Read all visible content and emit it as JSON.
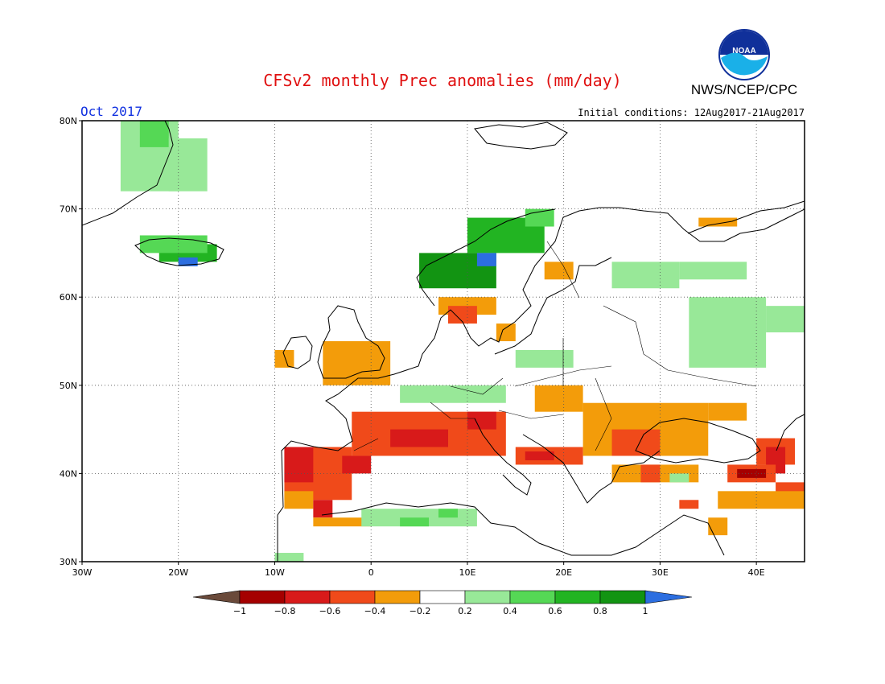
{
  "title": "CFSv2 monthly Prec anomalies (mm/day)",
  "agency": "NWS/NCEP/CPC",
  "logo_text": "NOAA",
  "month": "Oct 2017",
  "initial_conditions": "Initial conditions: 12Aug2017-21Aug2017",
  "axes": {
    "lon_min": -30,
    "lon_max": 45,
    "lat_min": 30,
    "lat_max": 80,
    "lon_ticks": [
      "30W",
      "20W",
      "10W",
      "0",
      "10E",
      "20E",
      "30E",
      "40E"
    ],
    "lat_ticks": [
      "30N",
      "40N",
      "50N",
      "60N",
      "70N",
      "80N"
    ],
    "grid": "dotted"
  },
  "colorbar": {
    "labels": [
      "−1",
      "−0.8",
      "−0.6",
      "−0.4",
      "−0.2",
      "0.2",
      "0.4",
      "0.6",
      "0.8",
      "1"
    ],
    "colors": [
      "#6a4a3a",
      "#a50000",
      "#d81a1a",
      "#f04a1a",
      "#f39c0a",
      "#ffffff",
      "#98e898",
      "#55d855",
      "#22b422",
      "#129412",
      "#2c6ee0"
    ]
  },
  "anomaly_regions": [
    {
      "lon": [
        -26,
        -20
      ],
      "lat": [
        72,
        80
      ],
      "cat": "0.2"
    },
    {
      "lon": [
        -24,
        -21
      ],
      "lat": [
        77,
        80
      ],
      "cat": "0.4"
    },
    {
      "lon": [
        -21,
        -17
      ],
      "lat": [
        72,
        78
      ],
      "cat": "0.2"
    },
    {
      "lon": [
        -22,
        -16
      ],
      "lat": [
        64,
        66
      ],
      "cat": "0.6"
    },
    {
      "lon": [
        -24,
        -17
      ],
      "lat": [
        65,
        67
      ],
      "cat": "0.4"
    },
    {
      "lon": [
        -20,
        -18
      ],
      "lat": [
        63.5,
        64.5
      ],
      "cat": "1"
    },
    {
      "lon": [
        5,
        13
      ],
      "lat": [
        61,
        65
      ],
      "cat": "0.8"
    },
    {
      "lon": [
        10,
        18
      ],
      "lat": [
        65,
        69
      ],
      "cat": "0.6"
    },
    {
      "lon": [
        16,
        19
      ],
      "lat": [
        68,
        70
      ],
      "cat": "0.4"
    },
    {
      "lon": [
        11,
        13
      ],
      "lat": [
        63.5,
        65
      ],
      "cat": "1"
    },
    {
      "lon": [
        18,
        21
      ],
      "lat": [
        62,
        64
      ],
      "cat": "-0.4"
    },
    {
      "lon": [
        7,
        13
      ],
      "lat": [
        58,
        60
      ],
      "cat": "-0.4"
    },
    {
      "lon": [
        8,
        11
      ],
      "lat": [
        57,
        59
      ],
      "cat": "-0.6"
    },
    {
      "lon": [
        13,
        15
      ],
      "lat": [
        55,
        57
      ],
      "cat": "-0.4"
    },
    {
      "lon": [
        -10,
        -8
      ],
      "lat": [
        52,
        54
      ],
      "cat": "-0.4"
    },
    {
      "lon": [
        -5,
        2
      ],
      "lat": [
        50,
        55
      ],
      "cat": "-0.4"
    },
    {
      "lon": [
        3,
        14
      ],
      "lat": [
        48,
        50
      ],
      "cat": "0.2"
    },
    {
      "lon": [
        15,
        21
      ],
      "lat": [
        52,
        54
      ],
      "cat": "0.2"
    },
    {
      "lon": [
        25,
        32
      ],
      "lat": [
        61,
        64
      ],
      "cat": "0.2"
    },
    {
      "lon": [
        32,
        39
      ],
      "lat": [
        62,
        64
      ],
      "cat": "0.2"
    },
    {
      "lon": [
        33,
        41
      ],
      "lat": [
        52,
        60
      ],
      "cat": "0.2"
    },
    {
      "lon": [
        41,
        45
      ],
      "lat": [
        56,
        59
      ],
      "cat": "0.2"
    },
    {
      "lon": [
        34,
        38
      ],
      "lat": [
        68,
        69
      ],
      "cat": "-0.4"
    },
    {
      "lon": [
        -2,
        14
      ],
      "lat": [
        42,
        47
      ],
      "cat": "-0.6"
    },
    {
      "lon": [
        2,
        8
      ],
      "lat": [
        43,
        45
      ],
      "cat": "-0.8"
    },
    {
      "lon": [
        10,
        13
      ],
      "lat": [
        45,
        47
      ],
      "cat": "-0.8"
    },
    {
      "lon": [
        -9,
        -2
      ],
      "lat": [
        37,
        43
      ],
      "cat": "-0.6"
    },
    {
      "lon": [
        -9,
        -6
      ],
      "lat": [
        39,
        43
      ],
      "cat": "-0.8"
    },
    {
      "lon": [
        -3,
        0
      ],
      "lat": [
        40,
        42
      ],
      "cat": "-0.8"
    },
    {
      "lon": [
        -9,
        -6
      ],
      "lat": [
        36,
        38
      ],
      "cat": "-0.4"
    },
    {
      "lon": [
        -6,
        -4
      ],
      "lat": [
        35,
        37
      ],
      "cat": "-0.8"
    },
    {
      "lon": [
        -6,
        0
      ],
      "lat": [
        34,
        35
      ],
      "cat": "-0.4"
    },
    {
      "lon": [
        15,
        22
      ],
      "lat": [
        41,
        43
      ],
      "cat": "-0.6"
    },
    {
      "lon": [
        16,
        19
      ],
      "lat": [
        41.5,
        42.5
      ],
      "cat": "-0.8"
    },
    {
      "lon": [
        22,
        35
      ],
      "lat": [
        42,
        48
      ],
      "cat": "-0.4"
    },
    {
      "lon": [
        17,
        22
      ],
      "lat": [
        47,
        50
      ],
      "cat": "-0.4"
    },
    {
      "lon": [
        25,
        30
      ],
      "lat": [
        42,
        45
      ],
      "cat": "-0.6"
    },
    {
      "lon": [
        35,
        39
      ],
      "lat": [
        46,
        48
      ],
      "cat": "-0.4"
    },
    {
      "lon": [
        25,
        34
      ],
      "lat": [
        39,
        41
      ],
      "cat": "-0.4"
    },
    {
      "lon": [
        28,
        30
      ],
      "lat": [
        39,
        41
      ],
      "cat": "-0.6"
    },
    {
      "lon": [
        40,
        44
      ],
      "lat": [
        41,
        44
      ],
      "cat": "-0.6"
    },
    {
      "lon": [
        41,
        43
      ],
      "lat": [
        40,
        43
      ],
      "cat": "-0.8"
    },
    {
      "lon": [
        37,
        42
      ],
      "lat": [
        39,
        41
      ],
      "cat": "-0.6"
    },
    {
      "lon": [
        38,
        41
      ],
      "lat": [
        39.5,
        40.5
      ],
      "cat": "-1"
    },
    {
      "lon": [
        42,
        45
      ],
      "lat": [
        37,
        39
      ],
      "cat": "-0.6"
    },
    {
      "lon": [
        36,
        45
      ],
      "lat": [
        36,
        38
      ],
      "cat": "-0.4"
    },
    {
      "lon": [
        32,
        34
      ],
      "lat": [
        36,
        37
      ],
      "cat": "-0.6"
    },
    {
      "lon": [
        35,
        37
      ],
      "lat": [
        33,
        35
      ],
      "cat": "-0.4"
    },
    {
      "lon": [
        -1,
        11
      ],
      "lat": [
        34,
        36
      ],
      "cat": "0.2"
    },
    {
      "lon": [
        3,
        6
      ],
      "lat": [
        34,
        35
      ],
      "cat": "0.4"
    },
    {
      "lon": [
        7,
        9
      ],
      "lat": [
        35,
        36
      ],
      "cat": "0.4"
    },
    {
      "lon": [
        -10,
        -7
      ],
      "lat": [
        30,
        31
      ],
      "cat": "0.2"
    },
    {
      "lon": [
        31,
        33
      ],
      "lat": [
        39,
        40
      ],
      "cat": "0.2"
    }
  ]
}
